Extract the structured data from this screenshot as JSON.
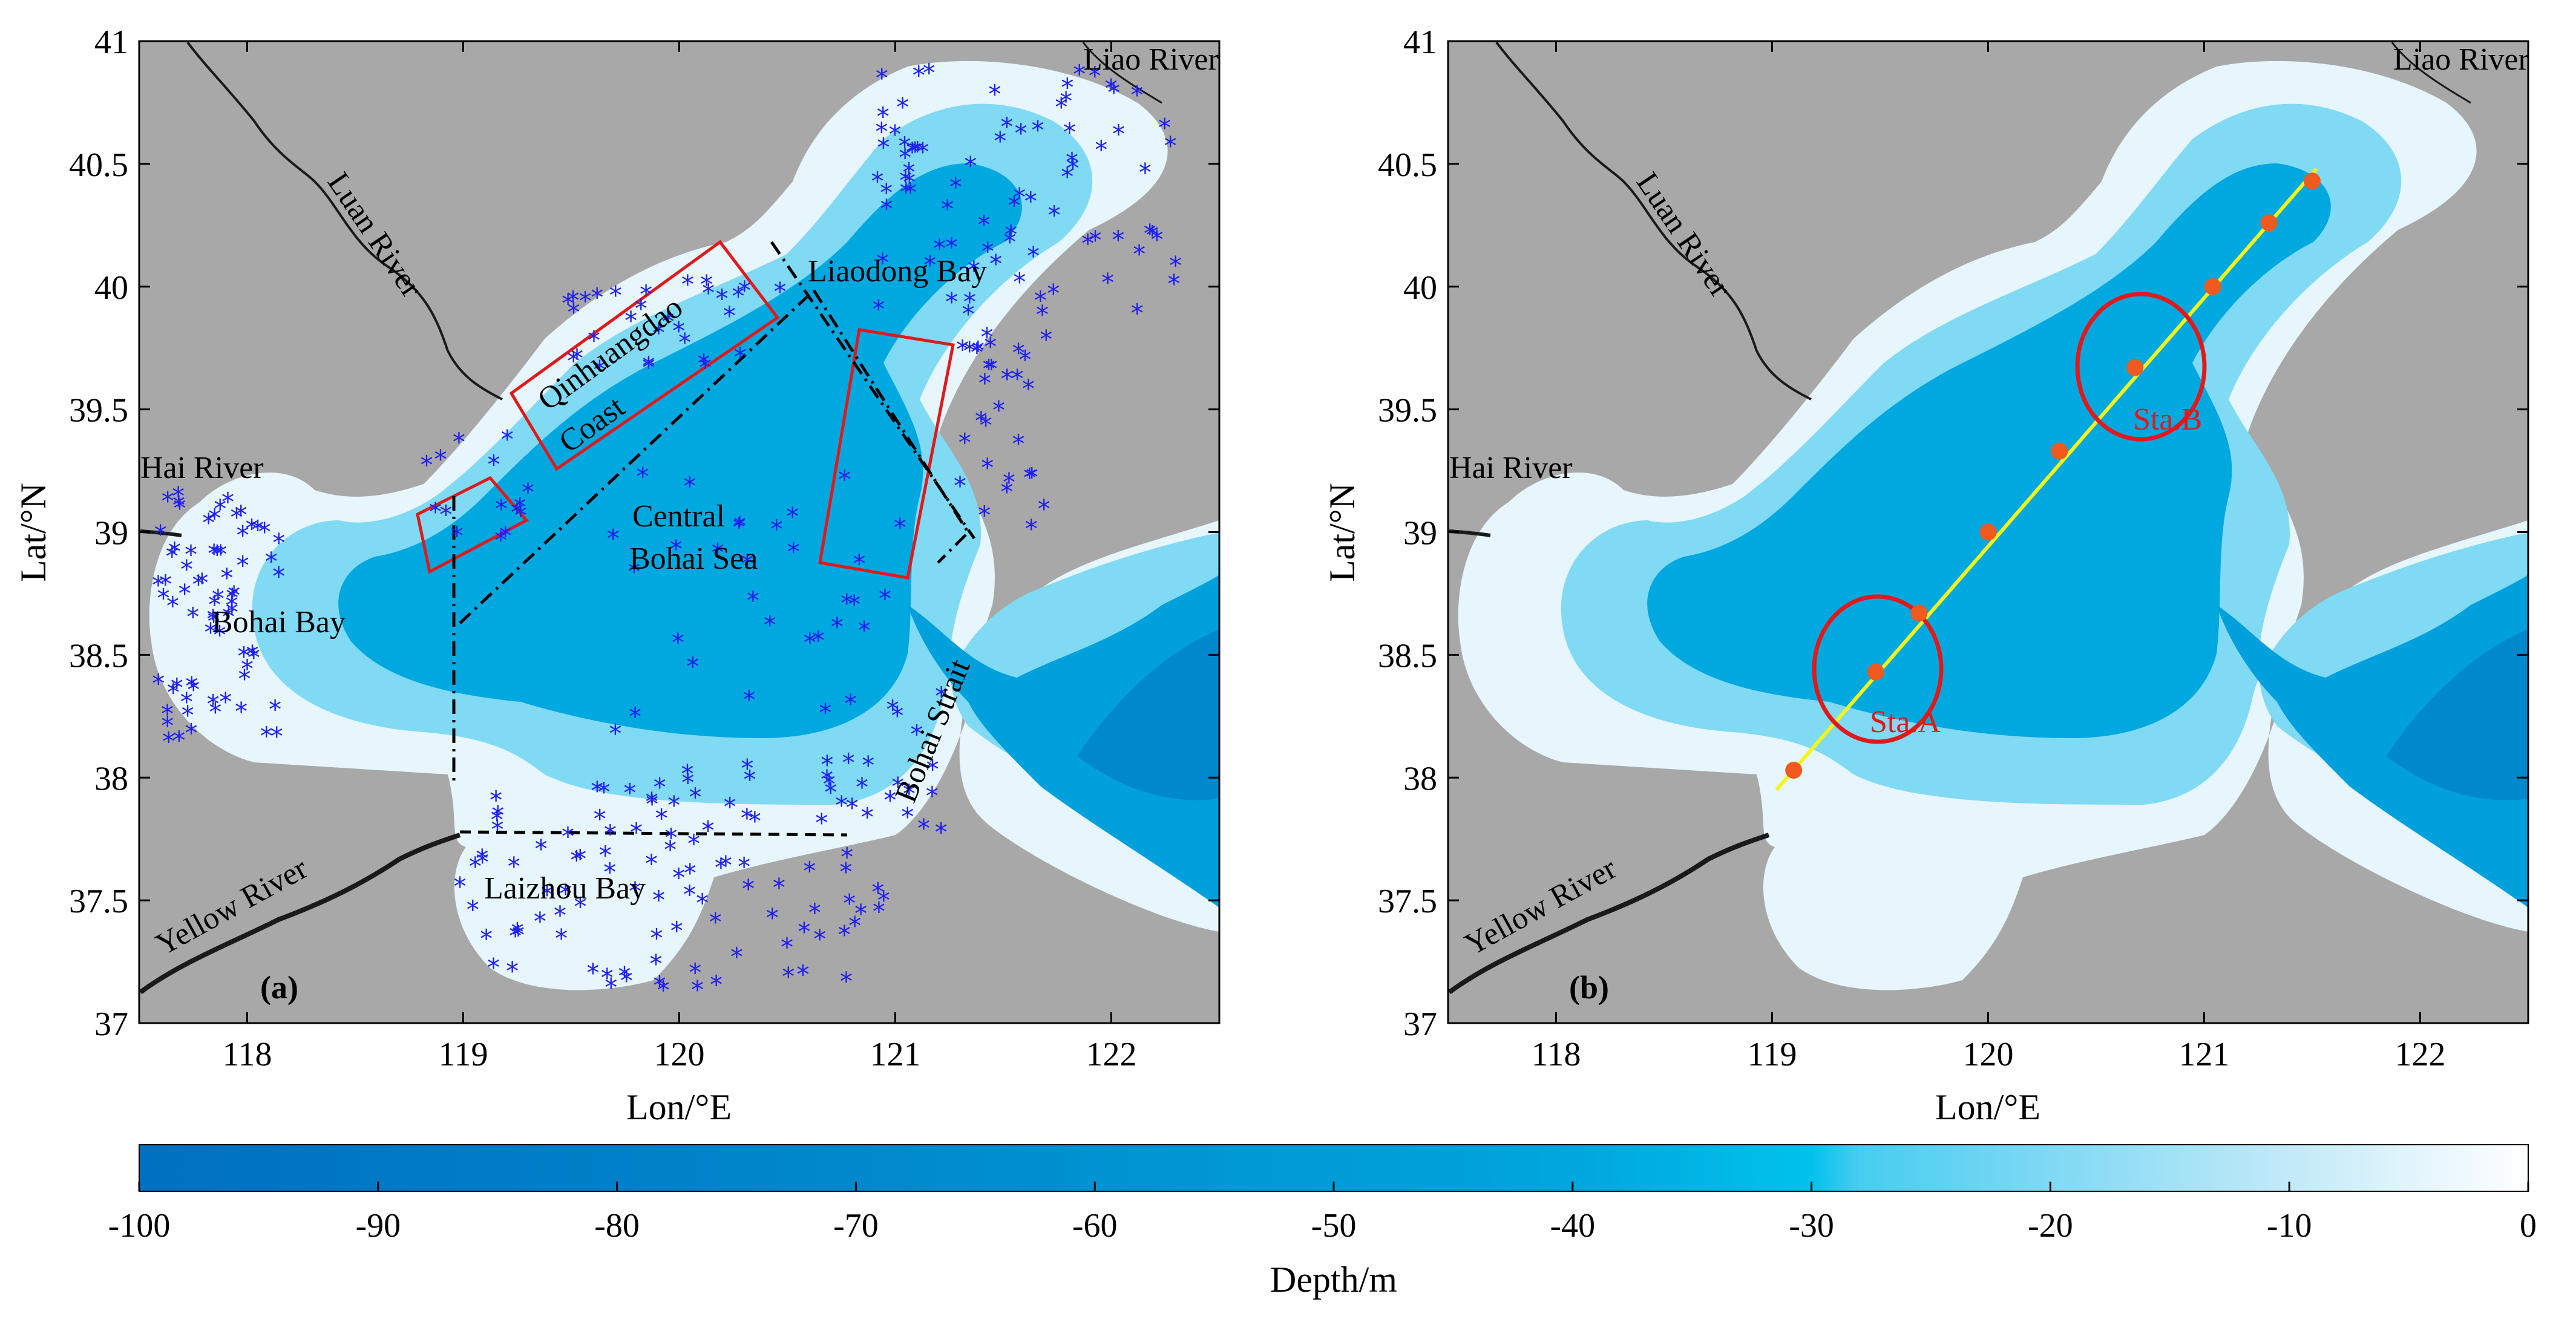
{
  "colors": {
    "land": "#a8a8a8",
    "coast": "#1a1a1a",
    "box": "#e0191b",
    "station_point": "#f05a1e",
    "transect": "#f5f51a",
    "marker": "#2020f0",
    "depth_scale": [
      "#0070c0",
      "#0088d0",
      "#00a8e0",
      "#00c0e8",
      "#40ccf0",
      "#80daf4",
      "#b8e8f8",
      "#e6f6fc",
      "#ffffff"
    ]
  },
  "panel_a": {
    "label": "(a)",
    "xlabel": "Lon/°E",
    "ylabel": "Lat/°N",
    "xticks": [
      "118",
      "119",
      "120",
      "121",
      "122"
    ],
    "yticks": [
      "37",
      "37.5",
      "38",
      "38.5",
      "39",
      "39.5",
      "40",
      "40.5",
      "41"
    ],
    "places": {
      "liao": "Liao River",
      "luan": "Luan River",
      "hai": "Hai River",
      "yellow": "Yellow River",
      "liaodong": "Liaodong Bay",
      "qhd1": "Qinhuangdao",
      "qhd2": "Coast",
      "central1": "Central",
      "central2": "Bohai Sea",
      "bohaibay": "Bohai Bay",
      "strait": "Bohai Strait",
      "laizhou": "Laizhou Bay"
    }
  },
  "panel_b": {
    "label": "(b)",
    "xlabel": "Lon/°E",
    "ylabel": "Lat/°N",
    "xticks": [
      "118",
      "119",
      "120",
      "121",
      "122"
    ],
    "yticks": [
      "37",
      "37.5",
      "38",
      "38.5",
      "39",
      "39.5",
      "40",
      "40.5",
      "41"
    ],
    "places": {
      "liao": "Liao River",
      "luan": "Luan River",
      "hai": "Hai River",
      "yellow": "Yellow River"
    },
    "stations": {
      "a": "Sta.A",
      "b": "Sta.B"
    },
    "transect_points": [
      {
        "lon": 119.1,
        "lat": 38.03
      },
      {
        "lon": 119.48,
        "lat": 38.43
      },
      {
        "lon": 119.68,
        "lat": 38.67
      },
      {
        "lon": 120.0,
        "lat": 39.0
      },
      {
        "lon": 120.33,
        "lat": 39.33
      },
      {
        "lon": 120.68,
        "lat": 39.67
      },
      {
        "lon": 121.04,
        "lat": 40.0
      },
      {
        "lon": 121.3,
        "lat": 40.26
      },
      {
        "lon": 121.5,
        "lat": 40.43
      }
    ]
  },
  "colorbar": {
    "label": "Depth/m",
    "ticks": [
      "-100",
      "-90",
      "-80",
      "-70",
      "-60",
      "-50",
      "-40",
      "-30",
      "-20",
      "-10",
      "0"
    ],
    "range": [
      -100,
      0
    ]
  }
}
